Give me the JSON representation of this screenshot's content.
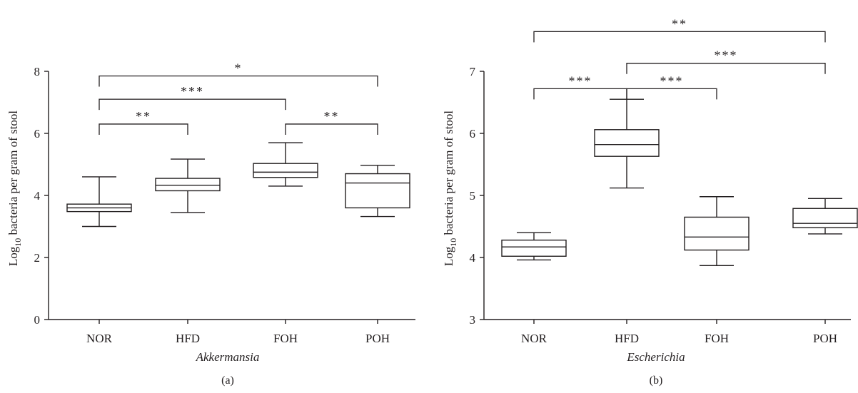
{
  "chart_data": [
    {
      "type": "box",
      "panel_label": "(a)",
      "xlabel": "Akkermansia",
      "ylabel_prefix": "Log",
      "ylabel_sub": "10",
      "ylabel_rest": " bacteria per gram of stool",
      "ylim": [
        0,
        8
      ],
      "yticks": [
        0,
        2,
        4,
        6,
        8
      ],
      "categories": [
        "NOR",
        "HFD",
        "FOH",
        "POH"
      ],
      "boxes": [
        {
          "category": "NOR",
          "min": 3.0,
          "q1": 3.48,
          "median": 3.6,
          "q3": 3.72,
          "max": 4.6
        },
        {
          "category": "HFD",
          "min": 3.45,
          "q1": 4.15,
          "median": 4.33,
          "q3": 4.55,
          "max": 5.17
        },
        {
          "category": "FOH",
          "min": 4.3,
          "q1": 4.58,
          "median": 4.75,
          "q3": 5.03,
          "max": 5.7
        },
        {
          "category": "POH",
          "min": 3.32,
          "q1": 3.6,
          "median": 4.4,
          "q3": 4.7,
          "max": 4.97
        }
      ],
      "significance": [
        {
          "from": "NOR",
          "to": "HFD",
          "y": 6.3,
          "label": "**"
        },
        {
          "from": "FOH",
          "to": "POH",
          "y": 6.3,
          "label": "**"
        },
        {
          "from": "NOR",
          "to": "FOH",
          "y": 7.1,
          "label": "***"
        },
        {
          "from": "NOR",
          "to": "POH",
          "y": 7.85,
          "label": "*"
        }
      ]
    },
    {
      "type": "box",
      "panel_label": "(b)",
      "xlabel": "Escherichia",
      "ylabel_prefix": "Log",
      "ylabel_sub": "10",
      "ylabel_rest": " bacteria per gram of stool",
      "ylim": [
        3,
        7
      ],
      "yticks": [
        3,
        4,
        5,
        6,
        7
      ],
      "categories": [
        "NOR",
        "HFD",
        "FOH",
        "POH"
      ],
      "boxes": [
        {
          "category": "NOR",
          "min": 3.96,
          "q1": 4.02,
          "median": 4.17,
          "q3": 4.28,
          "max": 4.4
        },
        {
          "category": "HFD",
          "min": 5.12,
          "q1": 5.63,
          "median": 5.82,
          "q3": 6.06,
          "max": 6.55
        },
        {
          "category": "FOH",
          "min": 3.87,
          "q1": 4.12,
          "median": 4.33,
          "q3": 4.65,
          "max": 4.98
        },
        {
          "category": "POH",
          "min": 4.38,
          "q1": 4.48,
          "median": 4.55,
          "q3": 4.79,
          "max": 4.95
        }
      ],
      "significance": [
        {
          "from": "NOR",
          "to": "HFD",
          "y": 6.72,
          "label": "***"
        },
        {
          "from": "HFD",
          "to": "FOH",
          "y": 6.72,
          "label": "***"
        },
        {
          "from": "HFD",
          "to": "POH",
          "y": 7.13,
          "label": "***"
        },
        {
          "from": "NOR",
          "to": "POH",
          "y": 7.64,
          "label": "**"
        }
      ]
    }
  ]
}
